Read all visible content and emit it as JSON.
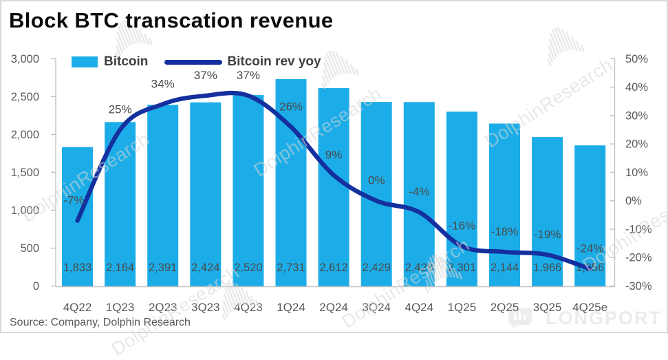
{
  "title": "Block BTC transcation revenue",
  "source": "Source: Company, Dolphin Research",
  "watermark": {
    "text": "DolphinResearch"
  },
  "longport": {
    "text": "LONGPORT"
  },
  "chart_data": {
    "type": "bar",
    "subtype": "bar+line combo, line on secondary axis",
    "title": "Block BTC transcation revenue",
    "categories": [
      "4Q22",
      "1Q23",
      "2Q23",
      "3Q23",
      "4Q23",
      "1Q24",
      "2Q24",
      "3Q24",
      "4Q24",
      "1Q25",
      "2Q25",
      "3Q25",
      "4Q25e"
    ],
    "series": [
      {
        "name": "Bitcoin",
        "type": "bar",
        "axis": "left",
        "values": [
          1833,
          2164,
          2391,
          2424,
          2520,
          2731,
          2612,
          2429,
          2428,
          2301,
          2144,
          1966,
          1856
        ],
        "labels": [
          "1,833",
          "2,164",
          "2,391",
          "2,424",
          "2,520",
          "2,731",
          "2,612",
          "2,429",
          "2,428",
          "2,301",
          "2,144",
          "1,966",
          "1,856"
        ]
      },
      {
        "name": "Bitcoin rev yoy",
        "type": "line",
        "axis": "right",
        "values": [
          -7,
          25,
          34,
          37,
          37,
          26,
          9,
          0,
          -4,
          -16,
          -18,
          -19,
          -24
        ],
        "labels": [
          "-7%",
          "25%",
          "34%",
          "37%",
          "37%",
          "26%",
          "9%",
          "0%",
          "-4%",
          "-16%",
          "-18%",
          "-19%",
          "-24%"
        ]
      }
    ],
    "left_axis": {
      "lim": [
        0,
        3000
      ],
      "ticks": [
        "3,000",
        "2,500",
        "2,000",
        "1,500",
        "1,000",
        "500",
        "0"
      ]
    },
    "right_axis": {
      "lim": [
        -30,
        50
      ],
      "ticks": [
        "50%",
        "40%",
        "30%",
        "20%",
        "10%",
        "0%",
        "-10%",
        "-20%",
        "-30%"
      ]
    },
    "grid": false,
    "legend_position": "top-inside",
    "colors": {
      "bar": "#1CADE8",
      "line": "#14309F",
      "axis": "#C3C3C3",
      "tick_text": "#595959",
      "label_text": "#4A4A4A",
      "title": "#0B0B0B",
      "watermark": "#D8D8D8"
    }
  }
}
